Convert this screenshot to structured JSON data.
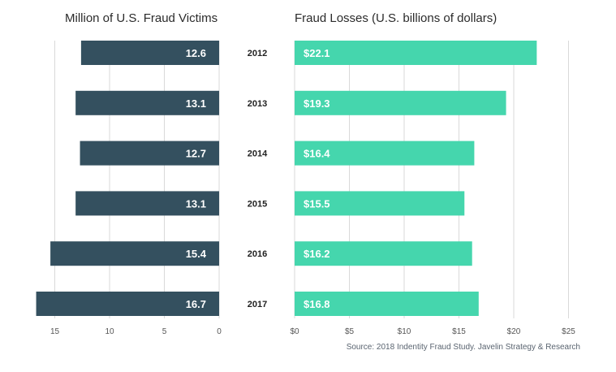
{
  "chart_data": [
    {
      "type": "bar",
      "orientation": "horizontal",
      "direction": "right-to-left",
      "title": "Million of U.S. Fraud Victims",
      "categories": [
        "2012",
        "2013",
        "2014",
        "2015",
        "2016",
        "2017"
      ],
      "values": [
        12.6,
        13.1,
        12.7,
        13.1,
        15.4,
        16.7
      ],
      "data_labels": [
        "12.6",
        "13.1",
        "12.7",
        "13.1",
        "15.4",
        "16.7"
      ],
      "xlim": [
        0,
        15
      ],
      "ticks": [
        15,
        10,
        5,
        0
      ],
      "tick_labels": [
        "15",
        "10",
        "5",
        "0"
      ],
      "grid": true,
      "color": "#34505f"
    },
    {
      "type": "bar",
      "orientation": "horizontal",
      "direction": "left-to-right",
      "title": "Fraud Losses (U.S. billions of dollars)",
      "categories": [
        "2012",
        "2013",
        "2014",
        "2015",
        "2016",
        "2017"
      ],
      "values": [
        22.1,
        19.3,
        16.4,
        15.5,
        16.2,
        16.8
      ],
      "data_labels": [
        "$22.1",
        "$19.3",
        "$16.4",
        "$15.5",
        "$16.2",
        "$16.8"
      ],
      "xlim": [
        0,
        25
      ],
      "ticks": [
        0,
        5,
        10,
        15,
        20,
        25
      ],
      "tick_labels": [
        "$0",
        "$5",
        "$10",
        "$15",
        "$20",
        "$25"
      ],
      "grid": true,
      "color": "#45d6ad"
    }
  ],
  "source": "Source: 2018 Indentity Fraud Study. Javelin Strategy & Research"
}
